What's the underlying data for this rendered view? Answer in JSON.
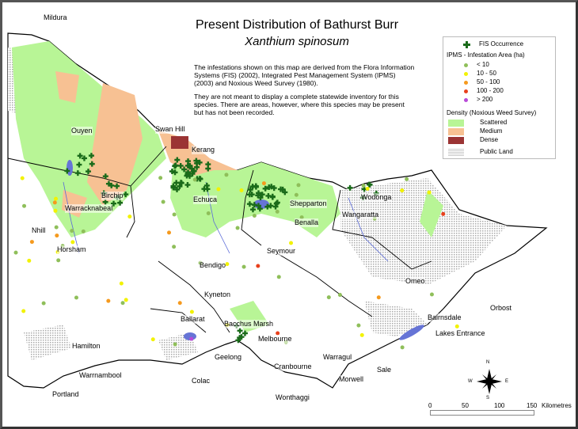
{
  "title": "Present Distribution of Bathurst Burr",
  "subtitle": "Xanthium spinosum",
  "notes": [
    "The infestations shown on this map are derived from the Flora Information Systems (FIS) (2002), Integrated Pest Management System (IPMS) (2003) and Noxious Weed Survey (1980).",
    "They are not meant to display a complete statewide inventory for this species. There are areas, however, where this species may be present but has not been recorded."
  ],
  "legend": {
    "fis": {
      "label": "FIS Occurrence",
      "color": "#1a6b1a",
      "icon": "plus-icon"
    },
    "ipms_title": "IPMS - Infestation Area (ha)",
    "ipms": [
      {
        "label": "< 10",
        "color": "#8fbf5a"
      },
      {
        "label": "10 - 50",
        "color": "#f2f200"
      },
      {
        "label": "50 - 100",
        "color": "#f59a1e"
      },
      {
        "label": "100 - 200",
        "color": "#e8401c"
      },
      {
        "label": "> 200",
        "color": "#b84ad8"
      }
    ],
    "density_title": "Density (Noxious Weed Survey)",
    "density": [
      {
        "label": "Scattered",
        "color": "#b8f596"
      },
      {
        "label": "Medium",
        "color": "#f7c193"
      },
      {
        "label": "Dense",
        "color": "#9b3434"
      }
    ],
    "public_land": {
      "label": "Public Land",
      "color": "#d4d4d4"
    }
  },
  "towns": [
    "Mildura",
    "Ouyen",
    "Swan Hill",
    "Kerang",
    "Birchip",
    "Warracknabeal",
    "Nhill",
    "Horsham",
    "Echuca",
    "Shepparton",
    "Wodonga",
    "Wangaratta",
    "Benalla",
    "Bendigo",
    "Seymour",
    "Kyneton",
    "Omeo",
    "Ballarat",
    "Bacchus Marsh",
    "Melbourne",
    "Hamilton",
    "Geelong",
    "Cranbourne",
    "Warragul",
    "Bairnsdale",
    "Orbost",
    "Lakes Entrance",
    "Warrnambool",
    "Colac",
    "Morwell",
    "Sale",
    "Portland",
    "Wonthaggi"
  ],
  "compass": {
    "n": "N",
    "s": "S",
    "e": "E",
    "w": "W"
  },
  "scale": {
    "ticks": [
      "0",
      "50",
      "100",
      "150"
    ],
    "unit": "Kilometres"
  }
}
